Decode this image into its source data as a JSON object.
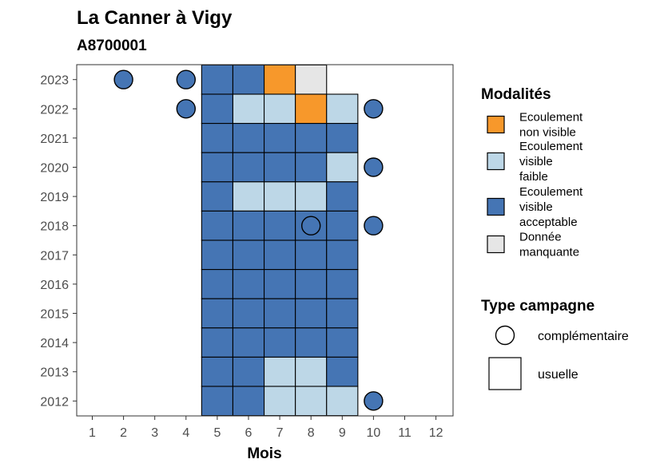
{
  "chart_data": {
    "type": "heatmap",
    "title": "La Canner à Vigy",
    "subtitle": "A8700001",
    "xlabel": "Mois",
    "ylabel": "",
    "x_ticks": [
      "1",
      "2",
      "3",
      "4",
      "5",
      "6",
      "7",
      "8",
      "9",
      "10",
      "11",
      "12"
    ],
    "y_ticks": [
      "2012",
      "2013",
      "2014",
      "2015",
      "2016",
      "2017",
      "2018",
      "2019",
      "2020",
      "2021",
      "2022",
      "2023"
    ],
    "grid": false,
    "legend_position": "right",
    "modalites_legend": {
      "title": "Modalités",
      "items": [
        {
          "key": "nv",
          "lines": [
            "Ecoulement",
            "non visible"
          ],
          "color": "#F7982B"
        },
        {
          "key": "vf",
          "lines": [
            "Ecoulement",
            "visible",
            "faible"
          ],
          "color": "#BDD7E7"
        },
        {
          "key": "va",
          "lines": [
            "Ecoulement",
            "visible",
            "acceptable"
          ],
          "color": "#4575B4"
        },
        {
          "key": "dm",
          "lines": [
            "Donnée",
            "manquante"
          ],
          "color": "#E6E6E6"
        }
      ]
    },
    "campagne_legend": {
      "title": "Type campagne",
      "items": [
        {
          "key": "complementaire",
          "label": "complémentaire",
          "shape": "circle"
        },
        {
          "key": "usuelle",
          "label": "usuelle",
          "shape": "square"
        }
      ]
    },
    "usuelle": [
      {
        "year": 2023,
        "months": {
          "5": "va",
          "6": "va",
          "7": "nv",
          "8": "dm"
        }
      },
      {
        "year": 2022,
        "months": {
          "5": "va",
          "6": "vf",
          "7": "vf",
          "8": "nv",
          "9": "vf"
        }
      },
      {
        "year": 2021,
        "months": {
          "5": "va",
          "6": "va",
          "7": "va",
          "8": "va",
          "9": "va"
        }
      },
      {
        "year": 2020,
        "months": {
          "5": "va",
          "6": "va",
          "7": "va",
          "8": "va",
          "9": "vf"
        }
      },
      {
        "year": 2019,
        "months": {
          "5": "va",
          "6": "vf",
          "7": "vf",
          "8": "vf",
          "9": "va"
        }
      },
      {
        "year": 2018,
        "months": {
          "5": "va",
          "6": "va",
          "7": "va",
          "8": "va",
          "9": "va"
        }
      },
      {
        "year": 2017,
        "months": {
          "5": "va",
          "6": "va",
          "7": "va",
          "8": "va",
          "9": "va"
        }
      },
      {
        "year": 2016,
        "months": {
          "5": "va",
          "6": "va",
          "7": "va",
          "8": "va",
          "9": "va"
        }
      },
      {
        "year": 2015,
        "months": {
          "5": "va",
          "6": "va",
          "7": "va",
          "8": "va",
          "9": "va"
        }
      },
      {
        "year": 2014,
        "months": {
          "5": "va",
          "6": "va",
          "7": "va",
          "8": "va",
          "9": "va"
        }
      },
      {
        "year": 2013,
        "months": {
          "5": "va",
          "6": "va",
          "7": "vf",
          "8": "vf",
          "9": "va"
        }
      },
      {
        "year": 2012,
        "months": {
          "5": "va",
          "6": "va",
          "7": "vf",
          "8": "vf",
          "9": "vf"
        }
      }
    ],
    "complementaire": [
      {
        "year": 2023,
        "month": 2,
        "modalite": "va"
      },
      {
        "year": 2023,
        "month": 4,
        "modalite": "va"
      },
      {
        "year": 2022,
        "month": 4,
        "modalite": "va"
      },
      {
        "year": 2022,
        "month": 10,
        "modalite": "va"
      },
      {
        "year": 2020,
        "month": 10,
        "modalite": "va"
      },
      {
        "year": 2018,
        "month": 8,
        "modalite": "va"
      },
      {
        "year": 2018,
        "month": 10,
        "modalite": "va"
      },
      {
        "year": 2012,
        "month": 10,
        "modalite": "va"
      }
    ]
  }
}
